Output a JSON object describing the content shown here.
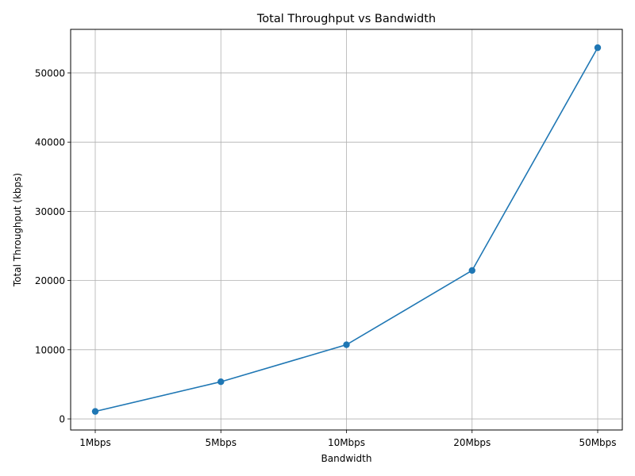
{
  "chart_data": {
    "type": "line",
    "title": "Total Throughput vs Bandwidth",
    "xlabel": "Bandwidth",
    "ylabel": "Total Throughput (kbps)",
    "categories": [
      "1Mbps",
      "5Mbps",
      "10Mbps",
      "20Mbps",
      "50Mbps"
    ],
    "series": [
      {
        "values": [
          1080,
          5370,
          10720,
          21450,
          53650
        ],
        "color": "#1f77b4",
        "marker": "circle"
      }
    ],
    "yticks": [
      0,
      10000,
      20000,
      30000,
      40000,
      50000
    ],
    "ylim": [
      -1600,
      56300
    ],
    "grid": true
  }
}
